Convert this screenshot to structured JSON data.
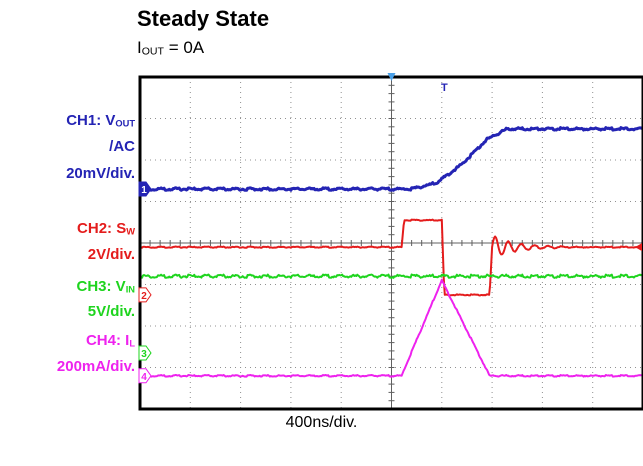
{
  "title": "Steady State",
  "subtitle": {
    "main": "I",
    "sub": "OUT",
    "rest": " = 0A"
  },
  "timebase_label": "400ns/div.",
  "colors": {
    "ch1": "#2424b4",
    "ch2": "#e41c1c",
    "ch3": "#1ed41e",
    "ch4": "#ee22ee",
    "grid": "#909090",
    "frame": "#000000"
  },
  "channels": [
    {
      "id": "ch1",
      "lines": [
        {
          "main": "CH1: V",
          "sub": "OUT",
          "rest": ""
        },
        {
          "main": "/AC",
          "sub": "",
          "rest": ""
        },
        {
          "main": "20mV/div.",
          "sub": "",
          "rest": ""
        }
      ],
      "marker": "1"
    },
    {
      "id": "ch2",
      "lines": [
        {
          "main": "CH2: S",
          "sub": "W",
          "rest": ""
        },
        {
          "main": "2V/div.",
          "sub": "",
          "rest": ""
        }
      ],
      "marker": "2"
    },
    {
      "id": "ch3",
      "lines": [
        {
          "main": "CH3: V",
          "sub": "IN",
          "rest": ""
        },
        {
          "main": "5V/div.",
          "sub": "",
          "rest": ""
        }
      ],
      "marker": "3"
    },
    {
      "id": "ch4",
      "lines": [
        {
          "main": "CH4: I",
          "sub": "L",
          "rest": ""
        },
        {
          "main": "200mA/div.",
          "sub": "",
          "rest": ""
        }
      ],
      "marker": "4"
    }
  ],
  "chart_data": {
    "type": "line",
    "title": "Steady State",
    "xlabel": "400ns/div.",
    "grid": true,
    "x_divisions": 10,
    "y_divisions": 8,
    "trigger_marker": "T",
    "series": [
      {
        "name": "CH1: VOUT /AC",
        "points": [
          [
            0,
            5.3
          ],
          [
            5.4,
            5.3
          ],
          [
            5.9,
            5.45
          ],
          [
            6.4,
            5.9
          ],
          [
            6.9,
            6.5
          ],
          [
            7.3,
            6.75
          ],
          [
            10,
            6.75
          ]
        ]
      },
      {
        "name": "CH2: SW",
        "points": [
          [
            0,
            3.9
          ],
          [
            5.2,
            3.9
          ],
          [
            5.25,
            4.55
          ],
          [
            6.0,
            4.55
          ],
          [
            6.05,
            2.75
          ],
          [
            6.95,
            2.75
          ],
          [
            7.0,
            3.9
          ],
          [
            10,
            3.9
          ]
        ],
        "ringing": {
          "start": 7.0,
          "amplitude": 0.3,
          "cycles": 8,
          "decay": 4
        }
      },
      {
        "name": "CH3: VIN",
        "points": [
          [
            0,
            3.2
          ],
          [
            10,
            3.2
          ]
        ]
      },
      {
        "name": "CH4: IL",
        "points": [
          [
            0,
            0.8
          ],
          [
            5.2,
            0.8
          ],
          [
            6.0,
            3.1
          ],
          [
            6.95,
            0.8
          ],
          [
            10,
            0.8
          ]
        ]
      }
    ]
  }
}
